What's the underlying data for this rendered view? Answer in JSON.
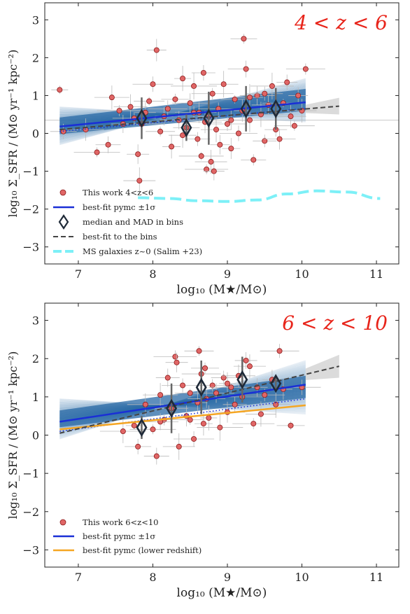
{
  "figure": {
    "panels_label": "Star-formation rate surface density vs stellar mass"
  },
  "chart_data": [
    {
      "type": "scatter",
      "title": "4 < z < 6",
      "title_color": "#e8241a",
      "xlabel": "log₁₀ (M★/M⊙)",
      "ylabel": "log₁₀ Σ_SFR / (M⊙ yr⁻¹ kpc⁻²)",
      "xlim": [
        6.55,
        11.3
      ],
      "ylim": [
        -3.45,
        3.45
      ],
      "xticks": [
        7,
        8,
        9,
        10,
        11
      ],
      "yticks": [
        -3,
        -2,
        -1,
        0,
        1,
        2,
        3
      ],
      "hline": 0.35,
      "points": [
        [
          6.75,
          1.15
        ],
        [
          6.8,
          0.05
        ],
        [
          7.1,
          0.1
        ],
        [
          7.25,
          -0.5
        ],
        [
          7.4,
          -0.3
        ],
        [
          7.45,
          0.95
        ],
        [
          7.55,
          0.6
        ],
        [
          7.6,
          0.25
        ],
        [
          7.7,
          0.7
        ],
        [
          7.75,
          0.4
        ],
        [
          7.8,
          -0.55
        ],
        [
          7.82,
          -1.25
        ],
        [
          7.85,
          0.25
        ],
        [
          7.9,
          0.55
        ],
        [
          7.95,
          0.85
        ],
        [
          8.0,
          1.3
        ],
        [
          8.05,
          2.2
        ],
        [
          8.1,
          0.05
        ],
        [
          8.2,
          0.65
        ],
        [
          8.25,
          -0.35
        ],
        [
          8.3,
          0.9
        ],
        [
          8.35,
          0.35
        ],
        [
          8.4,
          1.45
        ],
        [
          8.45,
          0.15
        ],
        [
          8.5,
          0.8
        ],
        [
          8.55,
          1.25
        ],
        [
          8.6,
          -0.15
        ],
        [
          8.62,
          0.55
        ],
        [
          8.65,
          -0.6
        ],
        [
          8.68,
          1.6
        ],
        [
          8.7,
          0.3
        ],
        [
          8.72,
          -0.95
        ],
        [
          8.75,
          0.45
        ],
        [
          8.78,
          -0.75
        ],
        [
          8.8,
          1.05
        ],
        [
          8.82,
          -1.0
        ],
        [
          8.85,
          0.1
        ],
        [
          8.88,
          0.65
        ],
        [
          8.9,
          -0.3
        ],
        [
          8.95,
          1.3
        ],
        [
          9.0,
          0.25
        ],
        [
          9.05,
          -0.4
        ],
        [
          9.1,
          0.9
        ],
        [
          9.15,
          0.0
        ],
        [
          9.2,
          0.6
        ],
        [
          9.22,
          2.5
        ],
        [
          9.25,
          1.7
        ],
        [
          9.3,
          0.35
        ],
        [
          9.35,
          -0.7
        ],
        [
          9.4,
          1.0
        ],
        [
          9.45,
          0.5
        ],
        [
          9.5,
          -0.2
        ],
        [
          9.55,
          0.75
        ],
        [
          9.6,
          1.25
        ],
        [
          9.65,
          0.1
        ],
        [
          9.7,
          -0.15
        ],
        [
          9.75,
          0.8
        ],
        [
          9.8,
          1.35
        ],
        [
          9.85,
          0.45
        ],
        [
          9.9,
          0.2
        ],
        [
          9.95,
          1.0
        ],
        [
          10.0,
          0.6
        ],
        [
          10.05,
          1.7
        ],
        [
          8.15,
          0.45
        ],
        [
          8.4,
          -0.05
        ],
        [
          8.55,
          0.55
        ],
        [
          9.05,
          0.35
        ],
        [
          9.3,
          0.95
        ],
        [
          9.5,
          1.05
        ]
      ],
      "bins": [
        {
          "x": 7.85,
          "y": 0.4,
          "err": 0.55
        },
        {
          "x": 8.45,
          "y": 0.15,
          "err": 0.35
        },
        {
          "x": 8.75,
          "y": 0.4,
          "err": 0.7
        },
        {
          "x": 9.25,
          "y": 0.65,
          "err": 0.6
        },
        {
          "x": 9.65,
          "y": 0.65,
          "err": 0.55
        }
      ],
      "fit": {
        "x0": 6.75,
        "x1": 10.05,
        "y0": 0.18,
        "y1": 0.82,
        "color": "#1a2fd6"
      },
      "fit_dotted": {
        "x0": 6.75,
        "x1": 10.05,
        "y0": 0.05,
        "y1": 0.66
      },
      "band": {
        "lower": [
          -0.3,
          0.3
        ],
        "upper": [
          0.7,
          1.45
        ]
      },
      "bins_fit": {
        "x0": 6.75,
        "x1": 10.5,
        "y0": 0.1,
        "y1": 0.72,
        "band_from": 10.05,
        "band_halfwidth": 0.22
      },
      "salim": {
        "x": [
          7.8,
          8.2,
          8.6,
          9.0,
          9.4,
          9.8,
          10.2,
          10.6,
          11.05
        ],
        "y": [
          -1.7,
          -1.72,
          -1.78,
          -1.8,
          -1.76,
          -1.6,
          -1.52,
          -1.55,
          -1.72
        ],
        "color": "#7df0f7"
      },
      "legend": [
        "This work 4<z<6",
        "best-fit pymc ±1σ",
        "median and MAD in bins",
        "best-fit to the bins",
        "MS galaxies z~0 (Salim +23)"
      ]
    },
    {
      "type": "scatter",
      "title": "6 < z < 10",
      "title_color": "#e8241a",
      "xlabel": "log₁₀ (M★/M⊙)",
      "ylabel": "log₁₀ Σ_SFR / (M⊙ yr⁻¹ kpc⁻²)",
      "xlim": [
        6.55,
        11.3
      ],
      "ylim": [
        -3.45,
        3.45
      ],
      "xticks": [
        7,
        8,
        9,
        10,
        11
      ],
      "yticks": [
        -3,
        -2,
        -1,
        0,
        1,
        2,
        3
      ],
      "points": [
        [
          7.75,
          0.25
        ],
        [
          7.8,
          -0.3
        ],
        [
          7.9,
          0.8
        ],
        [
          8.0,
          0.15
        ],
        [
          8.05,
          -0.55
        ],
        [
          8.1,
          1.05
        ],
        [
          8.15,
          0.4
        ],
        [
          8.2,
          1.5
        ],
        [
          8.25,
          0.7
        ],
        [
          8.3,
          2.05
        ],
        [
          8.32,
          1.9
        ],
        [
          8.35,
          -0.3
        ],
        [
          8.4,
          1.3
        ],
        [
          8.45,
          0.5
        ],
        [
          8.5,
          1.1
        ],
        [
          8.55,
          -0.1
        ],
        [
          8.6,
          0.85
        ],
        [
          8.62,
          2.2
        ],
        [
          8.65,
          1.6
        ],
        [
          8.68,
          0.3
        ],
        [
          8.7,
          1.75
        ],
        [
          8.72,
          0.95
        ],
        [
          8.75,
          0.45
        ],
        [
          8.8,
          1.3
        ],
        [
          8.85,
          1.1
        ],
        [
          8.9,
          0.2
        ],
        [
          8.95,
          1.5
        ],
        [
          9.0,
          0.6
        ],
        [
          9.05,
          1.25
        ],
        [
          9.1,
          0.8
        ],
        [
          9.15,
          1.55
        ],
        [
          9.2,
          1.0
        ],
        [
          9.25,
          1.95
        ],
        [
          9.3,
          1.8
        ],
        [
          9.35,
          0.3
        ],
        [
          9.4,
          1.25
        ],
        [
          9.45,
          0.55
        ],
        [
          9.5,
          1.05
        ],
        [
          9.6,
          1.45
        ],
        [
          9.65,
          0.8
        ],
        [
          9.7,
          2.2
        ],
        [
          9.75,
          1.2
        ],
        [
          9.85,
          0.25
        ],
        [
          10.0,
          1.25
        ],
        [
          9.0,
          1.35
        ],
        [
          8.5,
          0.4
        ],
        [
          8.1,
          0.35
        ],
        [
          7.6,
          0.1
        ]
      ],
      "bins": [
        {
          "x": 7.85,
          "y": 0.2,
          "err": 0.3
        },
        {
          "x": 8.25,
          "y": 0.7,
          "err": 0.65
        },
        {
          "x": 8.65,
          "y": 1.25,
          "err": 0.7
        },
        {
          "x": 9.2,
          "y": 1.45,
          "err": 0.6
        },
        {
          "x": 9.65,
          "y": 1.35,
          "err": 0.2
        }
      ],
      "fit": {
        "x0": 6.75,
        "x1": 10.05,
        "y0": 0.35,
        "y1": 1.32,
        "color": "#1a2fd6"
      },
      "fit_dotted": {
        "x0": 6.75,
        "x1": 10.05,
        "y0": 0.1,
        "y1": 0.95
      },
      "band": {
        "lower": [
          -0.1,
          0.55
        ],
        "upper": [
          0.95,
          1.95
        ]
      },
      "bins_fit": {
        "x0": 6.75,
        "x1": 10.5,
        "y0": 0.05,
        "y1": 1.8,
        "band_from": 10.05,
        "band_halfwidth": 0.3
      },
      "lower_z_fit": {
        "x0": 6.75,
        "x1": 10.05,
        "y0": 0.15,
        "y1": 0.78,
        "color": "#f5a623"
      },
      "legend": [
        "This work 6<z<10",
        "best-fit pymc ±1σ",
        "best-fit pymc (lower redshift)"
      ]
    }
  ]
}
